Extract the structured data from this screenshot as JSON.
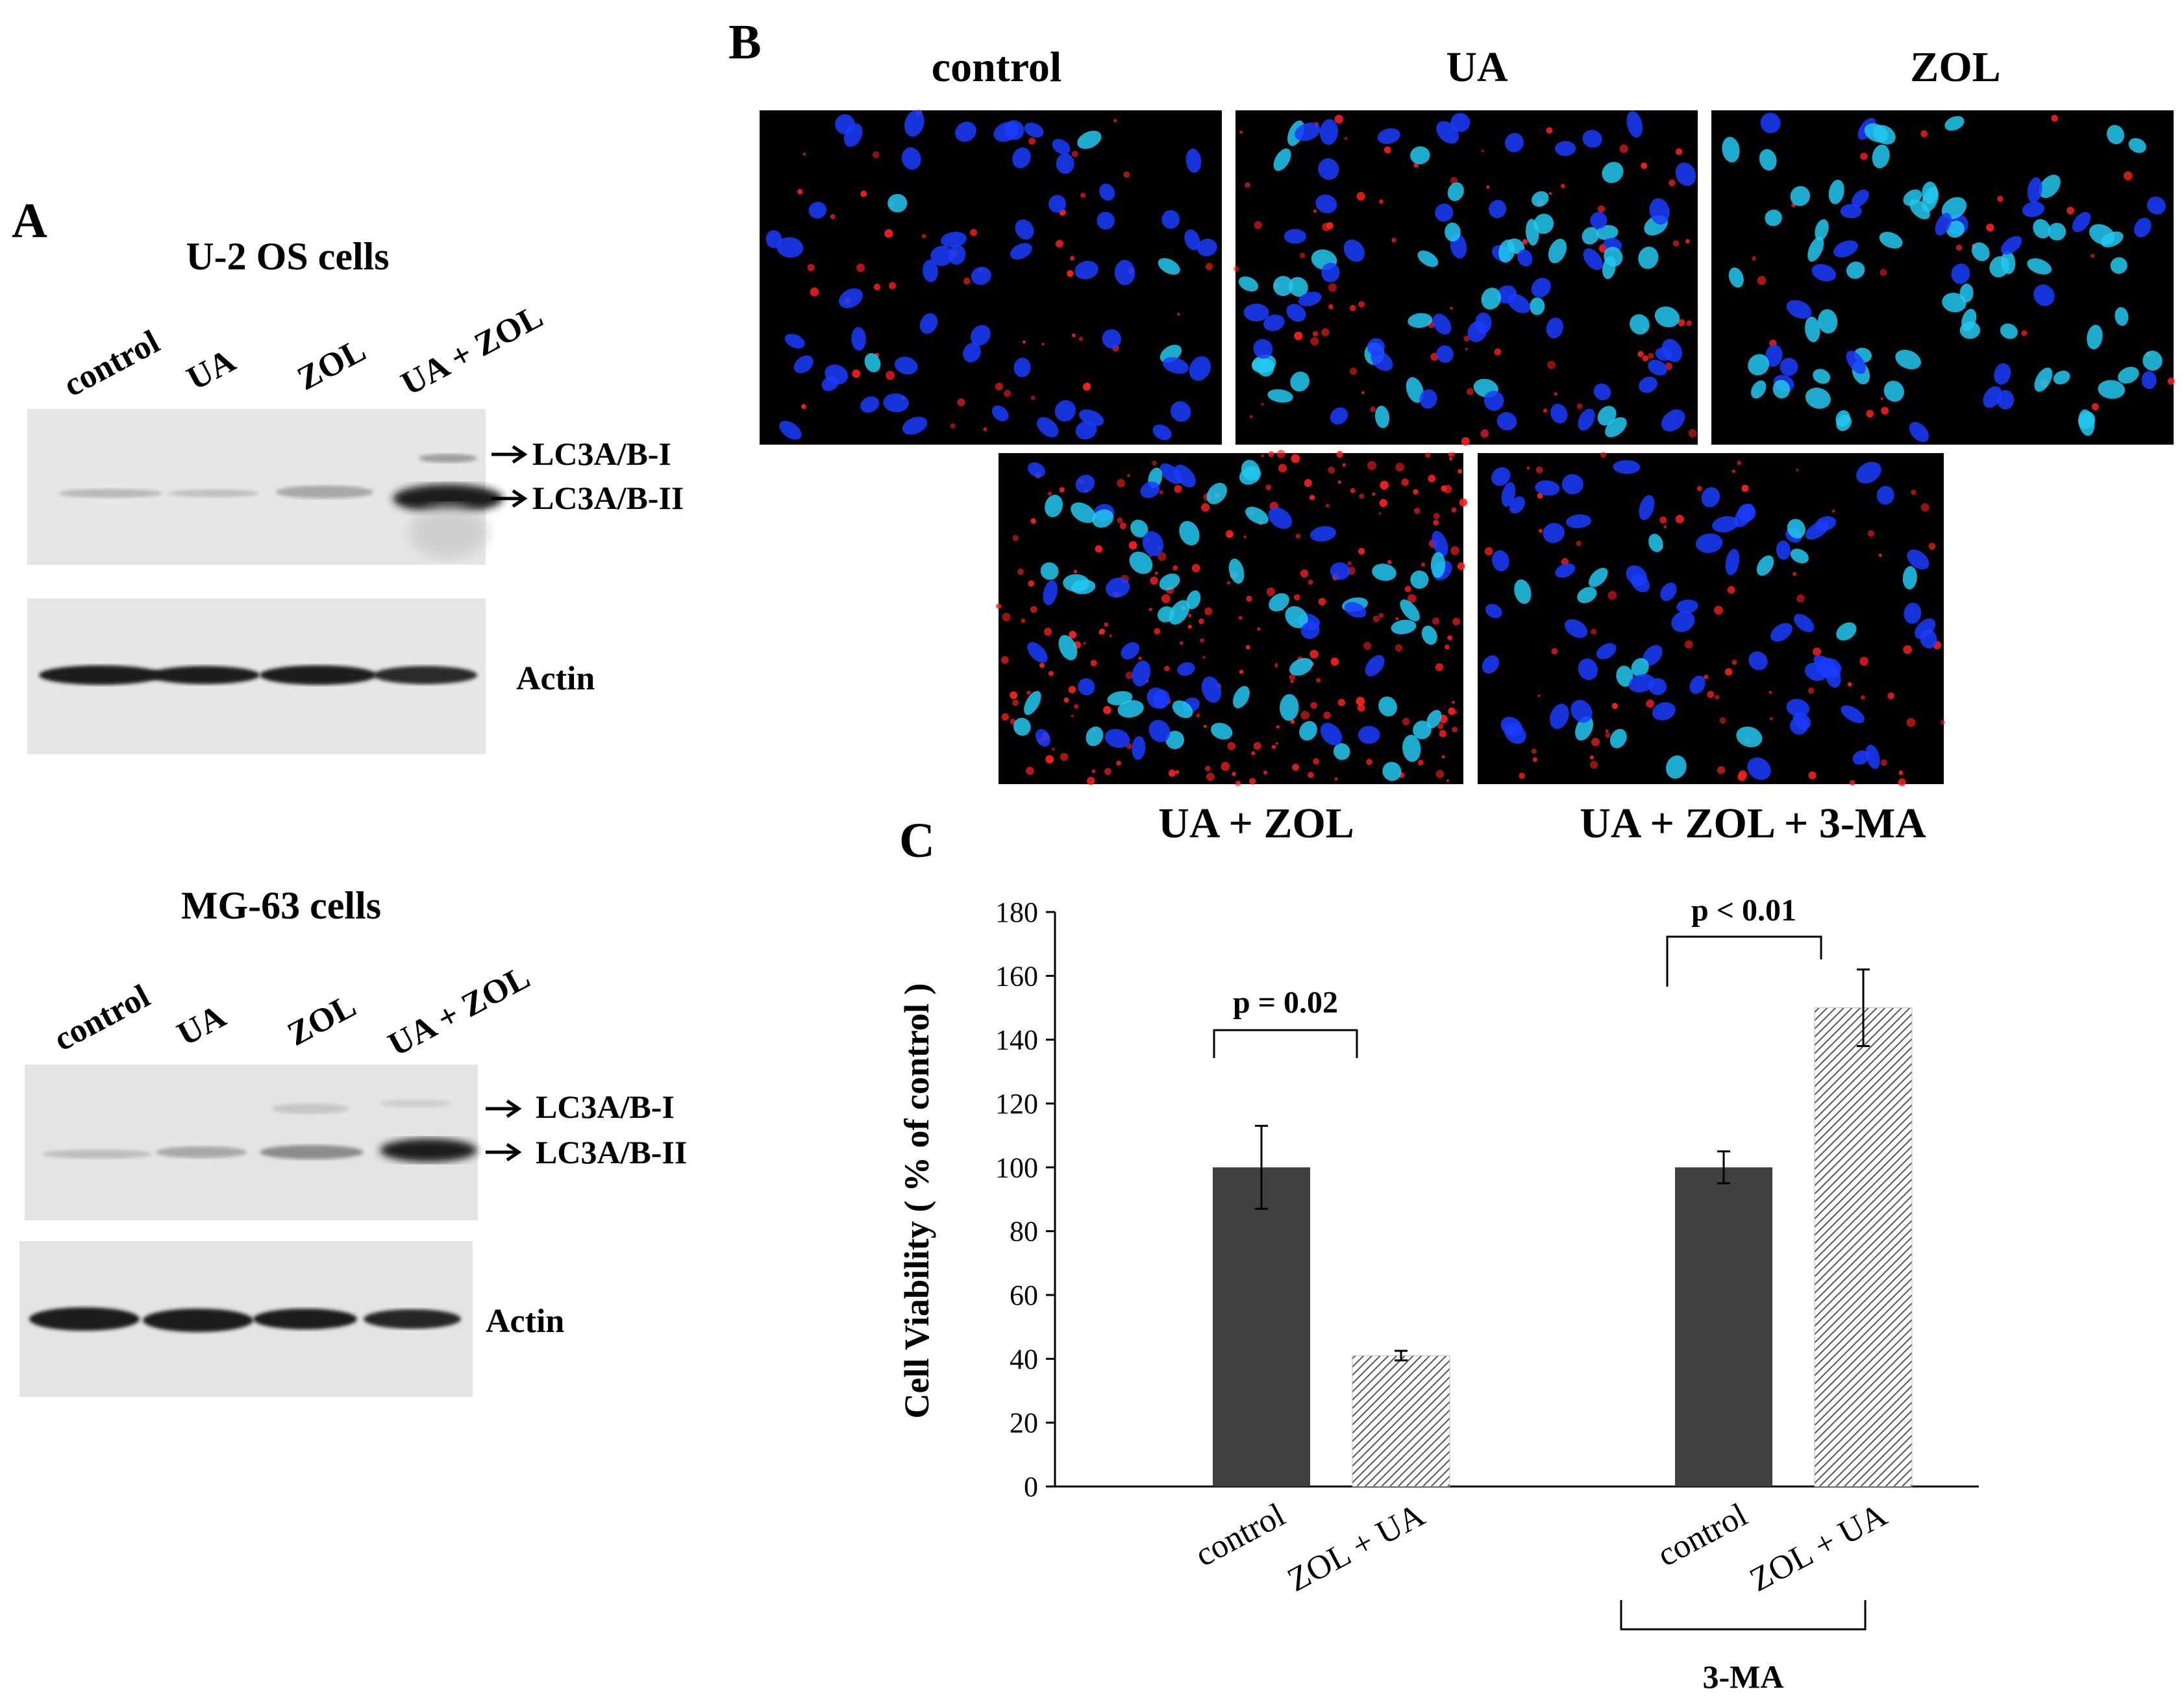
{
  "panel_a": {
    "letter": "A",
    "blot1": {
      "title": "U-2 OS cells",
      "lanes": [
        "control",
        "UA",
        "ZOL",
        "UA + ZOL"
      ],
      "labels": [
        "LC3A/B-I",
        "LC3A/B-II"
      ],
      "actin_label": "Actin"
    },
    "blot2": {
      "title": "MG-63  cells",
      "lanes": [
        "control",
        "UA",
        "ZOL",
        "UA + ZOL"
      ],
      "labels": [
        "LC3A/B-I",
        "LC3A/B-II"
      ],
      "actin_label": "Actin"
    }
  },
  "panel_b": {
    "letter": "B",
    "labels": [
      "control",
      "UA",
      "ZOL",
      "UA + ZOL",
      "UA + ZOL + 3-MA"
    ]
  },
  "panel_c": {
    "letter": "C",
    "p1": "p = 0.02",
    "p2": "p < 0.01",
    "group_label": "3-MA"
  },
  "colors": {
    "bar_dark": "#404040",
    "hatch": "#666666",
    "nucleus": "#1a3cff",
    "nucleus_bright": "#22c8f0",
    "lc3_dots": "#ff2020"
  },
  "chart_data": {
    "type": "bar",
    "categories": [
      "control",
      "ZOL + UA",
      "control",
      "ZOL + UA"
    ],
    "values": [
      100,
      41,
      100,
      150
    ],
    "errors": [
      13,
      1.5,
      5,
      12
    ],
    "ylabel": "Cell Viability ( % of control )",
    "ylim": [
      0,
      180
    ],
    "yticks": [
      0,
      20,
      40,
      60,
      80,
      100,
      120,
      140,
      160,
      180
    ],
    "grid": false
  }
}
